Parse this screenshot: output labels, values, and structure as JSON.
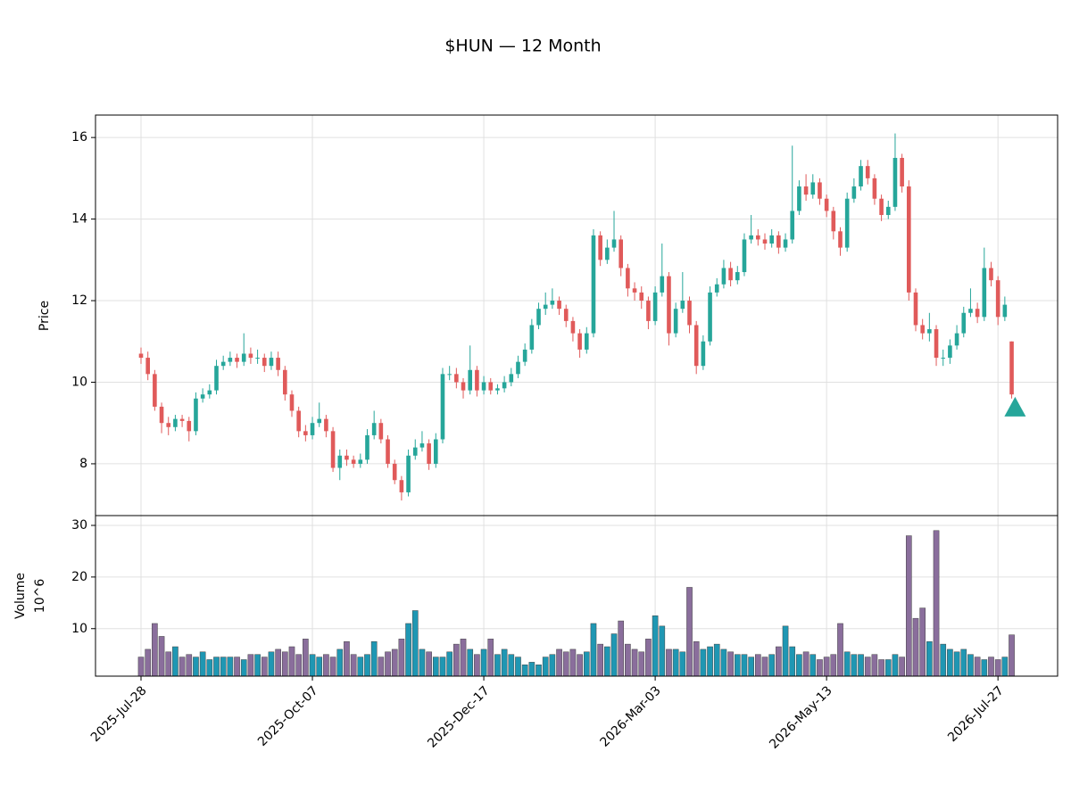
{
  "chart_data": {
    "type": "candlestick",
    "title": "$HUN — 12 Month",
    "y_label": "Price",
    "volume_label": "Volume",
    "volume_exponent": "10^6",
    "up_color": "#26a69a",
    "down_color": "#e05a5a",
    "volume_up_color": "#1f97b3",
    "volume_down_color": "#8a6e9c",
    "grid": true,
    "xlim": [
      -6.64,
      133.7
    ],
    "xticks": [
      {
        "value": 0,
        "label": "2025-Jul-28"
      },
      {
        "value": 25,
        "label": "2025-Oct-07"
      },
      {
        "value": 50,
        "label": "2025-Dec-17"
      },
      {
        "value": 75,
        "label": "2026-Mar-03"
      },
      {
        "value": 100,
        "label": "2026-May-13"
      },
      {
        "value": 125,
        "label": "2026-Jul-27"
      }
    ],
    "ylim": [
      6.73,
      16.55
    ],
    "yticks": [
      8,
      10,
      12,
      14,
      16
    ],
    "volume_ylim": [
      0.8,
      31.9
    ],
    "volume_yticks": [
      10,
      20,
      30
    ],
    "open": [
      10.7,
      10.6,
      10.2,
      9.4,
      9.0,
      8.9,
      9.1,
      9.05,
      8.8,
      9.6,
      9.7,
      9.8,
      10.4,
      10.5,
      10.6,
      10.5,
      10.7,
      10.6,
      10.6,
      10.4,
      10.6,
      10.3,
      9.7,
      9.3,
      8.8,
      8.7,
      9.0,
      9.1,
      8.8,
      7.9,
      8.2,
      8.1,
      8.0,
      8.1,
      8.7,
      9.0,
      8.6,
      8.0,
      7.6,
      7.3,
      8.2,
      8.4,
      8.5,
      8.0,
      8.6,
      10.2,
      10.2,
      10.0,
      9.8,
      10.3,
      9.8,
      10.0,
      9.8,
      9.85,
      10.0,
      10.2,
      10.5,
      10.8,
      11.4,
      11.8,
      11.9,
      12.0,
      11.8,
      11.5,
      11.2,
      10.8,
      11.2,
      13.6,
      13.0,
      13.3,
      13.5,
      12.8,
      12.3,
      12.2,
      12.0,
      11.5,
      12.2,
      12.6,
      11.2,
      11.8,
      12.0,
      11.4,
      10.4,
      11.0,
      12.2,
      12.4,
      12.8,
      12.5,
      12.7,
      13.5,
      13.6,
      13.5,
      13.4,
      13.6,
      13.3,
      13.5,
      14.2,
      14.8,
      14.6,
      14.9,
      14.5,
      14.2,
      13.7,
      13.3,
      14.5,
      14.8,
      15.3,
      15.0,
      14.5,
      14.1,
      14.3,
      15.5,
      14.8,
      12.2,
      11.4,
      11.2,
      11.3,
      10.6,
      10.6,
      10.9,
      11.2,
      11.7,
      11.8,
      11.6,
      12.8,
      12.5,
      11.6,
      11.0
    ],
    "high": [
      10.85,
      10.75,
      10.3,
      9.5,
      9.15,
      9.2,
      9.2,
      9.15,
      9.75,
      9.85,
      9.95,
      10.55,
      10.65,
      10.75,
      10.7,
      11.2,
      10.85,
      10.8,
      10.7,
      10.75,
      10.75,
      10.4,
      9.8,
      9.4,
      8.95,
      9.15,
      9.5,
      9.2,
      8.9,
      8.35,
      8.35,
      8.2,
      8.25,
      8.85,
      9.3,
      9.1,
      8.7,
      8.1,
      7.7,
      8.35,
      8.6,
      8.8,
      8.6,
      8.75,
      10.35,
      10.4,
      10.35,
      10.1,
      10.9,
      10.4,
      10.15,
      10.1,
      9.95,
      10.15,
      10.35,
      10.65,
      10.95,
      11.55,
      11.95,
      12.2,
      12.3,
      12.1,
      11.9,
      11.6,
      11.3,
      11.35,
      13.75,
      13.7,
      13.5,
      14.2,
      13.6,
      12.9,
      12.45,
      12.35,
      12.1,
      12.35,
      13.4,
      12.7,
      11.95,
      12.7,
      12.1,
      11.5,
      11.15,
      12.35,
      12.55,
      13.0,
      12.95,
      12.85,
      13.65,
      14.1,
      13.75,
      13.65,
      13.75,
      13.7,
      13.65,
      15.8,
      14.95,
      15.1,
      15.1,
      15.0,
      14.6,
      14.3,
      13.8,
      14.65,
      15.0,
      15.45,
      15.45,
      15.1,
      14.6,
      14.45,
      16.1,
      15.6,
      14.95,
      12.3,
      11.55,
      11.7,
      11.4,
      10.8,
      11.05,
      11.4,
      11.85,
      12.3,
      11.95,
      13.3,
      12.95,
      12.6,
      12.1,
      11.0
    ],
    "low": [
      10.45,
      10.05,
      9.3,
      8.75,
      8.7,
      8.8,
      8.9,
      8.55,
      8.7,
      9.5,
      9.6,
      9.7,
      10.3,
      10.4,
      10.35,
      10.4,
      10.45,
      10.45,
      10.25,
      10.3,
      10.15,
      9.55,
      9.15,
      8.65,
      8.55,
      8.6,
      8.9,
      8.65,
      7.8,
      7.6,
      7.95,
      7.9,
      7.9,
      8.0,
      8.6,
      8.5,
      7.9,
      7.5,
      7.1,
      7.2,
      8.1,
      8.3,
      7.85,
      7.9,
      8.5,
      10.05,
      9.85,
      9.6,
      9.7,
      9.65,
      9.7,
      9.7,
      9.7,
      9.75,
      9.9,
      10.1,
      10.4,
      10.7,
      11.3,
      11.65,
      11.8,
      11.65,
      11.35,
      11.0,
      10.6,
      10.7,
      11.1,
      12.85,
      12.9,
      13.2,
      12.6,
      12.1,
      12.0,
      11.8,
      11.3,
      11.4,
      12.1,
      10.9,
      11.1,
      11.7,
      11.2,
      10.2,
      10.3,
      10.9,
      12.1,
      12.3,
      12.35,
      12.4,
      12.6,
      13.4,
      13.35,
      13.25,
      13.3,
      13.15,
      13.2,
      13.4,
      14.1,
      14.45,
      14.5,
      14.35,
      14.05,
      13.5,
      13.1,
      13.2,
      14.4,
      14.7,
      14.85,
      14.35,
      13.95,
      14.0,
      14.2,
      14.65,
      12.0,
      11.25,
      11.05,
      11.0,
      10.4,
      10.4,
      10.45,
      10.8,
      11.1,
      11.6,
      11.45,
      11.5,
      12.35,
      11.4,
      11.5,
      9.6
    ],
    "close": [
      10.6,
      10.2,
      9.4,
      9.0,
      8.9,
      9.1,
      9.05,
      8.8,
      9.6,
      9.7,
      9.8,
      10.4,
      10.5,
      10.6,
      10.5,
      10.7,
      10.6,
      10.6,
      10.4,
      10.6,
      10.3,
      9.7,
      9.3,
      8.8,
      8.7,
      9.0,
      9.1,
      8.8,
      7.9,
      8.2,
      8.1,
      8.0,
      8.1,
      8.7,
      9.0,
      8.6,
      8.0,
      7.6,
      7.3,
      8.2,
      8.4,
      8.5,
      8.0,
      8.6,
      10.2,
      10.2,
      10.0,
      9.8,
      10.3,
      9.8,
      10.0,
      9.8,
      9.85,
      10.0,
      10.2,
      10.5,
      10.8,
      11.4,
      11.8,
      11.9,
      12.0,
      11.8,
      11.5,
      11.2,
      10.8,
      11.2,
      13.6,
      13.0,
      13.3,
      13.5,
      12.8,
      12.3,
      12.2,
      12.0,
      11.5,
      12.2,
      12.6,
      11.2,
      11.8,
      12.0,
      11.4,
      10.4,
      11.0,
      12.2,
      12.4,
      12.8,
      12.5,
      12.7,
      13.5,
      13.6,
      13.5,
      13.4,
      13.6,
      13.3,
      13.5,
      14.2,
      14.8,
      14.6,
      14.9,
      14.5,
      14.2,
      13.7,
      13.3,
      14.5,
      14.8,
      15.3,
      15.0,
      14.5,
      14.1,
      14.3,
      15.5,
      14.8,
      12.2,
      11.4,
      11.2,
      11.3,
      10.6,
      10.6,
      10.9,
      11.2,
      11.7,
      11.8,
      11.6,
      12.8,
      12.5,
      11.6,
      11.9,
      9.7
    ],
    "volume": [
      4.5,
      6,
      11,
      8.5,
      5.5,
      6.5,
      4.5,
      5,
      4.5,
      5.5,
      4,
      4.5,
      4.5,
      4.5,
      4.5,
      4,
      5,
      5,
      4.5,
      5.5,
      6,
      5.5,
      6.5,
      5,
      8,
      5,
      4.5,
      5,
      4.5,
      6,
      7.5,
      5,
      4.5,
      5,
      7.5,
      4.5,
      5.5,
      6,
      8,
      11,
      13.5,
      6,
      5.5,
      4.5,
      4.5,
      5.5,
      7,
      8,
      6,
      5,
      6,
      8,
      5,
      6,
      5,
      4.5,
      3,
      3.5,
      3,
      4.5,
      5,
      6,
      5.5,
      6,
      5,
      5.5,
      11,
      7,
      6.5,
      9,
      11.5,
      7,
      6,
      5.5,
      8,
      12.5,
      10.5,
      6,
      6,
      5.5,
      18,
      7.5,
      6,
      6.5,
      7,
      6,
      5.5,
      5,
      5,
      4.5,
      5,
      4.5,
      5,
      6.5,
      10.5,
      6.5,
      5,
      5.5,
      5,
      4,
      4.5,
      5,
      11,
      5.5,
      5,
      5,
      4.5,
      5,
      4,
      4,
      5,
      4.5,
      28,
      12,
      14,
      7.5,
      29,
      7,
      6,
      5.5,
      6,
      5,
      4.5,
      4,
      4.5,
      4,
      4.5,
      8.8
    ],
    "marker": {
      "x": 127.5,
      "y": 9.4,
      "color": "#26a69a"
    }
  }
}
